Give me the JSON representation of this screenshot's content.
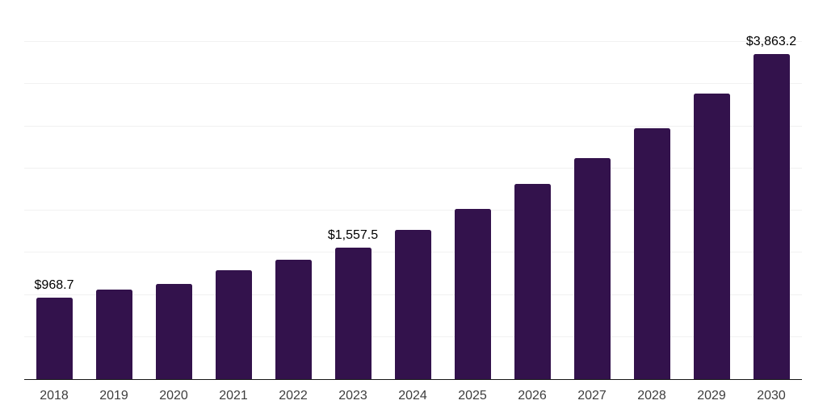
{
  "chart_data": {
    "type": "bar",
    "title": "",
    "xlabel": "",
    "ylabel": "",
    "categories": [
      "2018",
      "2019",
      "2020",
      "2021",
      "2022",
      "2023",
      "2024",
      "2025",
      "2026",
      "2027",
      "2028",
      "2029",
      "2030"
    ],
    "values": [
      968.7,
      1065,
      1130,
      1295,
      1420,
      1557.5,
      1775,
      2025,
      2320,
      2620,
      2975,
      3390,
      3863.2
    ],
    "value_labels": [
      "$968.7",
      null,
      null,
      null,
      null,
      "$1,557.5",
      null,
      null,
      null,
      null,
      null,
      null,
      "$3,863.2"
    ],
    "ylim": [
      0,
      4500
    ],
    "gridline_step": 500,
    "grid": "horizontal",
    "y_tick_labels_shown": false,
    "legend_position": "none",
    "colors": {
      "bar": "#33124C",
      "gridline": "#f1f1f1",
      "axis_line": "#161616",
      "value_label_text": "#000000",
      "tick_label_text": "#3d3d3d",
      "background": "#ffffff"
    }
  }
}
